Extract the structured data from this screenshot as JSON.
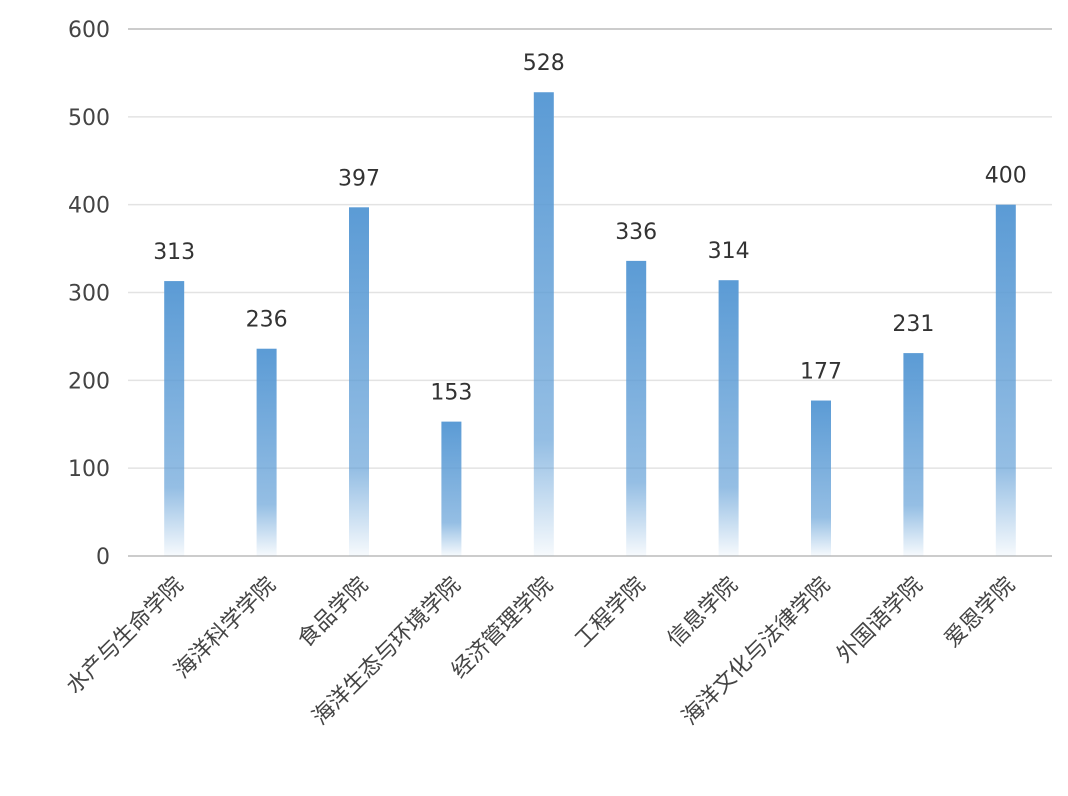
{
  "chart_data": {
    "type": "bar",
    "categories": [
      "水产与生命学院",
      "海洋科学学院",
      "食品学院",
      "海洋生态与环境学院",
      "经济管理学院",
      "工程学院",
      "信息学院",
      "海洋文化与法律学院",
      "外国语学院",
      "爱恩学院"
    ],
    "values": [
      313,
      236,
      397,
      153,
      528,
      336,
      314,
      177,
      231,
      400
    ],
    "color": "#5b9bd5",
    "ylim": [
      0,
      600
    ],
    "yticks": [
      0,
      100,
      200,
      300,
      400,
      500,
      600
    ],
    "grid": true
  }
}
